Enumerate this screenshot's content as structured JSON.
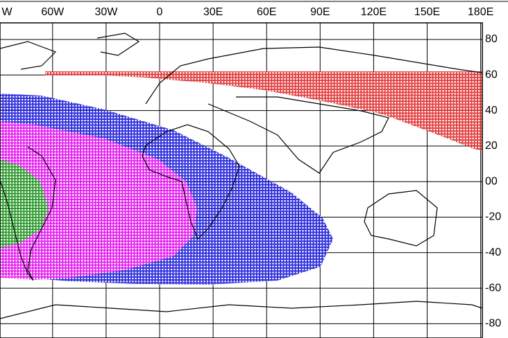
{
  "map": {
    "lon_labels": [
      "W",
      "60W",
      "30W",
      "0",
      "30E",
      "60E",
      "90E",
      "120E",
      "150E",
      "180E"
    ],
    "lat_labels": [
      "80",
      "60",
      "40",
      "20",
      "00",
      "-20",
      "-40",
      "-60",
      "-80"
    ]
  }
}
